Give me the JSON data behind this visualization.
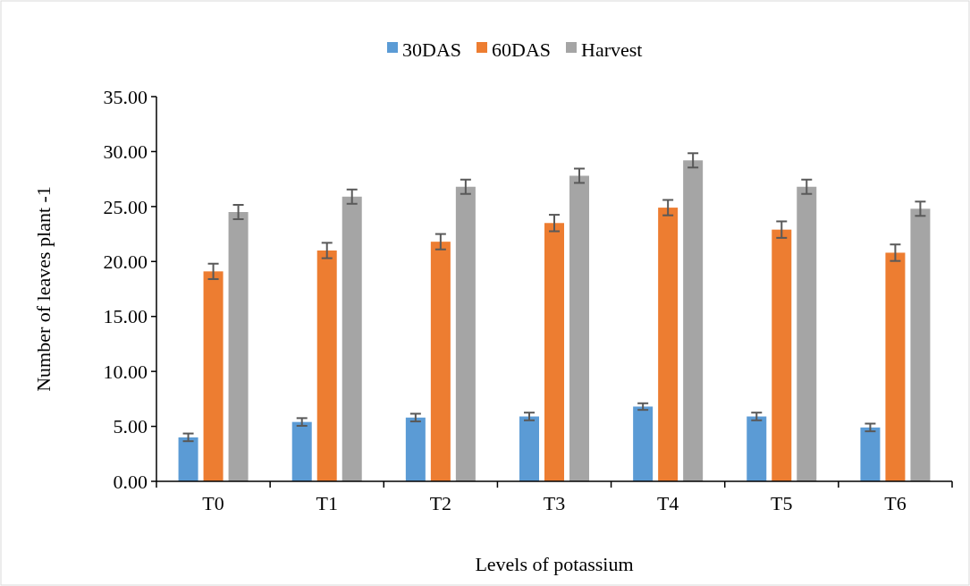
{
  "chart_data": {
    "type": "bar",
    "xlabel": "Levels of potassium",
    "ylabel": "Number of  leaves plant -1",
    "categories": [
      "T0",
      "T1",
      "T2",
      "T3",
      "T4",
      "T5",
      "T6"
    ],
    "series": [
      {
        "name": "30DAS",
        "color": "#5b9bd5",
        "values": [
          4.0,
          5.4,
          5.8,
          5.9,
          6.8,
          5.9,
          4.9
        ],
        "errors": [
          0.35,
          0.35,
          0.35,
          0.35,
          0.3,
          0.35,
          0.35
        ]
      },
      {
        "name": "60DAS",
        "color": "#ed7d31",
        "values": [
          19.1,
          21.0,
          21.8,
          23.5,
          24.9,
          22.9,
          20.8
        ],
        "errors": [
          0.7,
          0.7,
          0.7,
          0.75,
          0.7,
          0.75,
          0.75
        ]
      },
      {
        "name": "Harvest",
        "color": "#a5a5a5",
        "values": [
          24.5,
          25.9,
          26.8,
          27.8,
          29.2,
          26.8,
          24.8
        ],
        "errors": [
          0.65,
          0.65,
          0.65,
          0.65,
          0.65,
          0.65,
          0.65
        ]
      }
    ],
    "ylim": [
      0,
      35
    ],
    "yticks": [
      {
        "value": 0,
        "label": "0.00"
      },
      {
        "value": 5,
        "label": "5.00"
      },
      {
        "value": 10,
        "label": "10.00"
      },
      {
        "value": 15,
        "label": "15.00"
      },
      {
        "value": 20,
        "label": "20.00"
      },
      {
        "value": 25,
        "label": "25.00"
      },
      {
        "value": 30,
        "label": "30.00"
      },
      {
        "value": 35,
        "label": "35.00"
      }
    ],
    "grid": false,
    "legend": "top"
  }
}
